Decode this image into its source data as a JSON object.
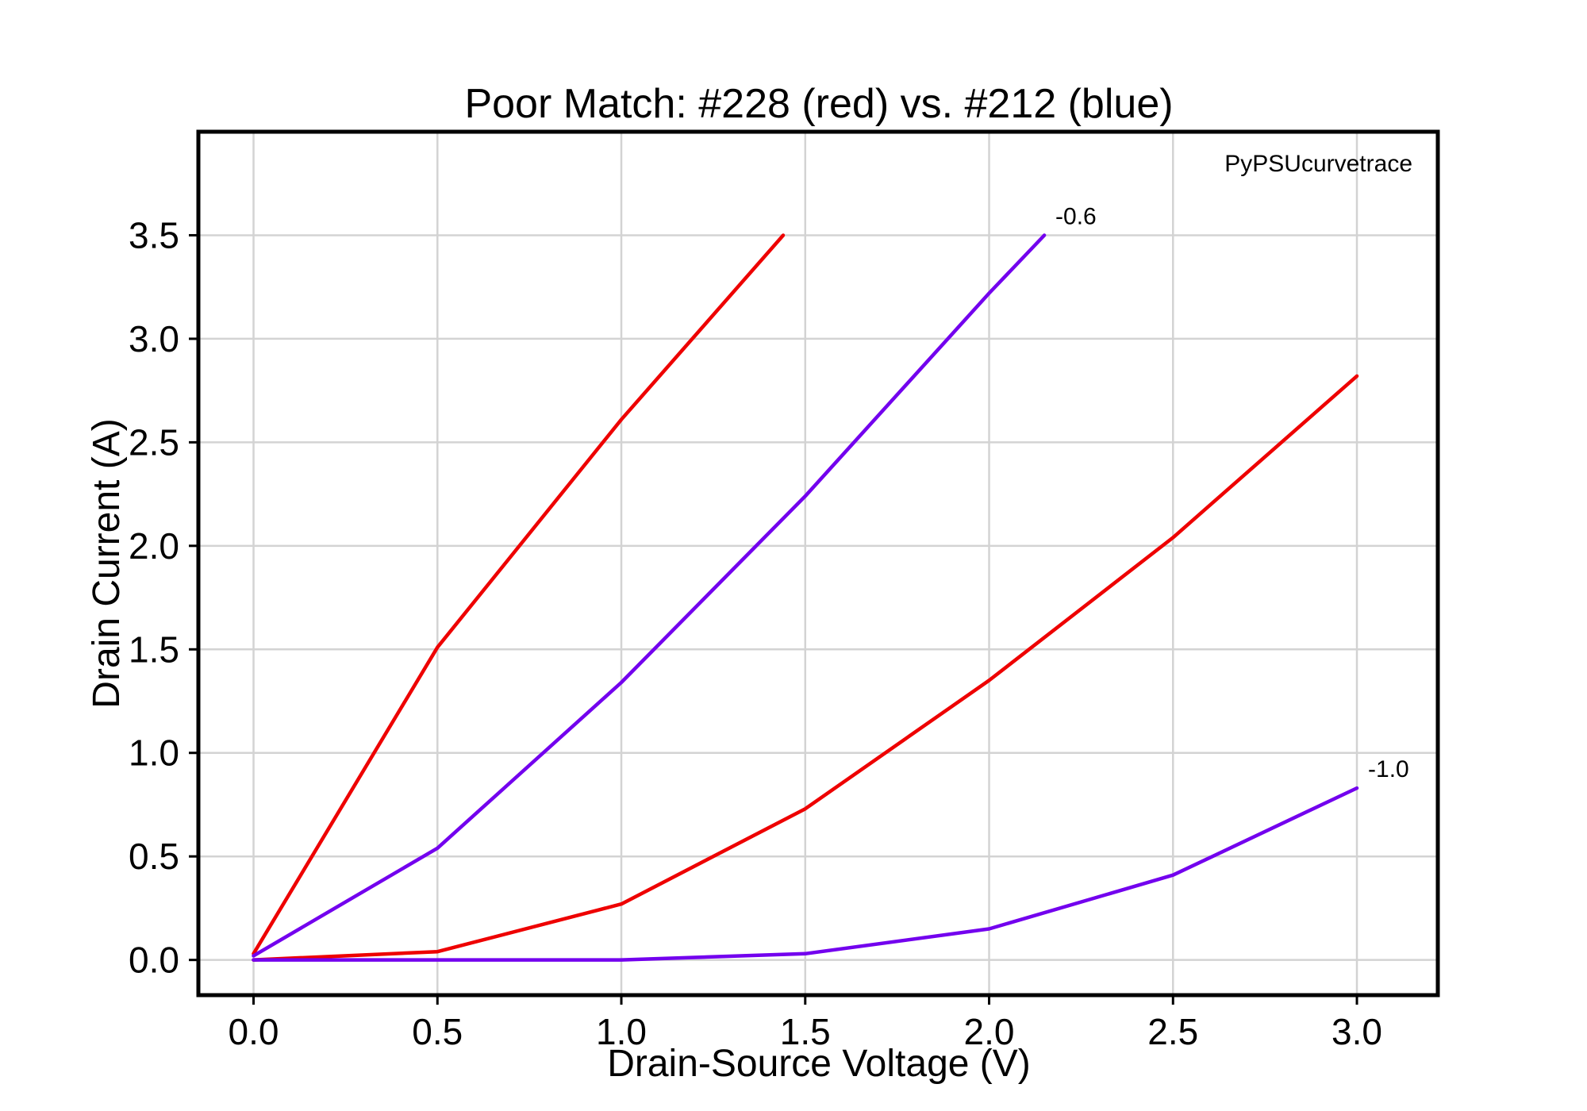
{
  "chart_data": {
    "type": "line",
    "title": "Poor Match: #228 (red) vs. #212 (blue)",
    "xlabel": "Drain-Source Voltage (V)",
    "ylabel": "Drain Current (A)",
    "xlim": [
      -0.15,
      3.22
    ],
    "ylim": [
      -0.17,
      4.0
    ],
    "xticks": [
      0.0,
      0.5,
      1.0,
      1.5,
      2.0,
      2.5,
      3.0
    ],
    "xtick_labels": [
      "0.0",
      "0.5",
      "1.0",
      "1.5",
      "2.0",
      "2.5",
      "3.0"
    ],
    "yticks": [
      0.0,
      0.5,
      1.0,
      1.5,
      2.0,
      2.5,
      3.0,
      3.5
    ],
    "ytick_labels": [
      "0.0",
      "0.5",
      "1.0",
      "1.5",
      "2.0",
      "2.5",
      "3.0",
      "3.5"
    ],
    "grid": true,
    "watermark": "PyPSUcurvetrace",
    "colors": {
      "red": "#ee0000",
      "blue": "#7300ee"
    },
    "series": [
      {
        "color": "red",
        "x": [
          0.0,
          0.5,
          1.0,
          1.44
        ],
        "y": [
          0.03,
          1.51,
          2.61,
          3.5
        ]
      },
      {
        "color": "blue",
        "x": [
          0.0,
          0.5,
          1.0,
          1.5,
          2.0,
          2.15
        ],
        "y": [
          0.02,
          0.54,
          1.34,
          2.24,
          3.22,
          3.5
        ],
        "annotation": "-0.6"
      },
      {
        "color": "red",
        "x": [
          0.0,
          0.5,
          1.0,
          1.5,
          2.0,
          2.5,
          3.0
        ],
        "y": [
          0.0,
          0.04,
          0.27,
          0.73,
          1.35,
          2.04,
          2.82
        ]
      },
      {
        "color": "blue",
        "x": [
          0.0,
          0.5,
          1.0,
          1.5,
          2.0,
          2.5,
          3.0
        ],
        "y": [
          0.0,
          0.0,
          0.0,
          0.03,
          0.15,
          0.41,
          0.83
        ],
        "annotation": "-1.0"
      }
    ]
  }
}
